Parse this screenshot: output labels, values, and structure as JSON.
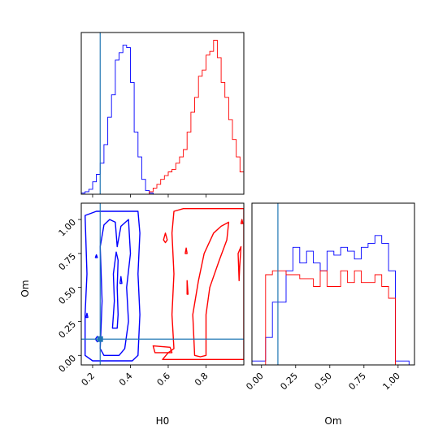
{
  "chart_data": {
    "type": "corner",
    "parameters": [
      "H0",
      "Om"
    ],
    "truth": {
      "H0": 0.24,
      "Om": 0.12
    },
    "colors": {
      "series_a": "#0000ff",
      "series_b": "#ff0000",
      "truth": "#1f77b4"
    },
    "axes": {
      "H0": {
        "label": "H0",
        "range": [
          0.14,
          1.0
        ],
        "ticks": [
          "0.2",
          "0.4",
          "0.6",
          "0.8"
        ],
        "tick_values": [
          0.2,
          0.4,
          0.6,
          0.8
        ]
      },
      "Om": {
        "label": "Om",
        "range": [
          -0.07,
          1.12
        ],
        "ticks": [
          "0.00",
          "0.25",
          "0.50",
          "0.75",
          "1.00"
        ],
        "tick_values": [
          0.0,
          0.25,
          0.5,
          0.75,
          1.0
        ]
      }
    },
    "hist_H0": {
      "bin_edges": [
        0.14,
        0.16,
        0.18,
        0.2,
        0.22,
        0.24,
        0.26,
        0.28,
        0.3,
        0.32,
        0.34,
        0.36,
        0.38,
        0.4,
        0.42,
        0.44,
        0.46,
        0.48,
        0.5,
        0.52,
        0.54,
        0.56,
        0.58,
        0.6,
        0.62,
        0.64,
        0.66,
        0.68,
        0.7,
        0.72,
        0.74,
        0.76,
        0.78,
        0.8,
        0.82,
        0.84,
        0.86,
        0.88,
        0.9,
        0.92,
        0.94,
        0.96,
        0.98,
        1.0
      ],
      "series_a": [
        1,
        2,
        4,
        10,
        16,
        25,
        40,
        62,
        80,
        108,
        114,
        120,
        118,
        90,
        50,
        30,
        12,
        3,
        1,
        0,
        0,
        0,
        0,
        0,
        0,
        0,
        0,
        0,
        0,
        0,
        0,
        0,
        0,
        0,
        0,
        0,
        0,
        0,
        0,
        0,
        0,
        0,
        0
      ],
      "series_b": [
        0,
        0,
        0,
        0,
        0,
        0,
        0,
        0,
        0,
        0,
        0,
        0,
        0,
        0,
        0,
        0,
        0,
        0,
        2,
        5,
        8,
        12,
        15,
        18,
        20,
        25,
        30,
        36,
        50,
        66,
        78,
        95,
        100,
        112,
        115,
        124,
        110,
        90,
        78,
        60,
        44,
        30,
        18
      ]
    },
    "hist_Om": {
      "bin_edges": [
        -0.07,
        -0.02,
        0.03,
        0.08,
        0.13,
        0.18,
        0.23,
        0.28,
        0.33,
        0.38,
        0.43,
        0.48,
        0.53,
        0.58,
        0.63,
        0.68,
        0.73,
        0.78,
        0.83,
        0.88,
        0.93,
        0.98,
        1.03,
        1.08,
        1.12
      ],
      "series_a": [
        5,
        5,
        35,
        80,
        80,
        120,
        150,
        130,
        145,
        130,
        120,
        145,
        140,
        150,
        145,
        135,
        150,
        155,
        165,
        155,
        120,
        5,
        5,
        0
      ],
      "series_b": [
        0,
        0,
        115,
        120,
        120,
        115,
        115,
        110,
        110,
        100,
        120,
        100,
        100,
        120,
        105,
        120,
        105,
        105,
        115,
        100,
        85,
        0,
        0,
        0
      ]
    },
    "contours_2d": {
      "series_a": [
        [
          [
            0.16,
            0.0
          ],
          [
            0.16,
            0.3
          ],
          [
            0.17,
            0.6
          ],
          [
            0.16,
            1.03
          ],
          [
            0.22,
            1.06
          ],
          [
            0.34,
            1.06
          ],
          [
            0.44,
            1.06
          ],
          [
            0.45,
            0.9
          ],
          [
            0.44,
            0.6
          ],
          [
            0.45,
            0.3
          ],
          [
            0.44,
            0.0
          ],
          [
            0.41,
            -0.04
          ],
          [
            0.3,
            -0.04
          ],
          [
            0.2,
            -0.04
          ],
          [
            0.16,
            0.0
          ]
        ],
        [
          [
            0.24,
            0.05
          ],
          [
            0.25,
            0.4
          ],
          [
            0.24,
            0.8
          ],
          [
            0.26,
            0.96
          ],
          [
            0.29,
            1.0
          ],
          [
            0.32,
            0.98
          ],
          [
            0.33,
            0.8
          ],
          [
            0.35,
            0.95
          ],
          [
            0.39,
            1.0
          ],
          [
            0.4,
            0.75
          ],
          [
            0.38,
            0.5
          ],
          [
            0.39,
            0.25
          ],
          [
            0.37,
            0.05
          ],
          [
            0.34,
            0.0
          ],
          [
            0.3,
            0.0
          ],
          [
            0.26,
            0.0
          ],
          [
            0.24,
            0.05
          ]
        ],
        [
          [
            0.305,
            0.2
          ],
          [
            0.315,
            0.4
          ],
          [
            0.31,
            0.6
          ],
          [
            0.325,
            0.76
          ],
          [
            0.335,
            0.7
          ],
          [
            0.33,
            0.5
          ],
          [
            0.335,
            0.3
          ],
          [
            0.33,
            0.2
          ],
          [
            0.305,
            0.2
          ]
        ],
        [
          [
            0.165,
            0.28
          ],
          [
            0.17,
            0.31
          ],
          [
            0.175,
            0.28
          ],
          [
            0.165,
            0.28
          ]
        ],
        [
          [
            0.215,
            0.12
          ],
          [
            0.225,
            0.14
          ],
          [
            0.235,
            0.12
          ],
          [
            0.225,
            0.1
          ],
          [
            0.215,
            0.12
          ]
        ],
        [
          [
            0.345,
            0.53
          ],
          [
            0.35,
            0.58
          ],
          [
            0.355,
            0.53
          ],
          [
            0.345,
            0.53
          ]
        ],
        [
          [
            0.215,
            0.72
          ],
          [
            0.22,
            0.74
          ],
          [
            0.225,
            0.72
          ],
          [
            0.215,
            0.72
          ]
        ]
      ],
      "series_b": [
        [
          [
            0.57,
            -0.03
          ],
          [
            0.9,
            -0.03
          ],
          [
            1.0,
            -0.03
          ],
          [
            1.0,
            1.08
          ],
          [
            0.82,
            1.08
          ],
          [
            0.68,
            1.08
          ],
          [
            0.63,
            1.06
          ],
          [
            0.62,
            0.9
          ],
          [
            0.63,
            0.6
          ],
          [
            0.62,
            0.3
          ],
          [
            0.63,
            0.05
          ],
          [
            0.6,
            0.02
          ],
          [
            0.57,
            -0.03
          ]
        ],
        [
          [
            0.53,
            0.02
          ],
          [
            0.52,
            0.07
          ],
          [
            0.61,
            0.06
          ],
          [
            0.62,
            0.02
          ],
          [
            0.53,
            0.02
          ]
        ],
        [
          [
            0.74,
            0.0
          ],
          [
            0.73,
            0.3
          ],
          [
            0.76,
            0.55
          ],
          [
            0.79,
            0.75
          ],
          [
            0.84,
            0.9
          ],
          [
            0.88,
            0.95
          ],
          [
            0.92,
            0.98
          ],
          [
            0.91,
            0.85
          ],
          [
            0.87,
            0.7
          ],
          [
            0.82,
            0.5
          ],
          [
            0.8,
            0.3
          ],
          [
            0.8,
            0.15
          ],
          [
            0.8,
            0.0
          ],
          [
            0.77,
            -0.01
          ],
          [
            0.74,
            0.0
          ]
        ],
        [
          [
            0.975,
            0.55
          ],
          [
            0.978,
            0.65
          ],
          [
            0.985,
            0.8
          ],
          [
            0.97,
            0.75
          ],
          [
            0.975,
            0.55
          ]
        ],
        [
          [
            0.985,
            0.97
          ],
          [
            0.99,
            1.0
          ],
          [
            0.995,
            0.97
          ],
          [
            0.985,
            0.97
          ]
        ],
        [
          [
            0.575,
            0.85
          ],
          [
            0.585,
            0.9
          ],
          [
            0.595,
            0.85
          ],
          [
            0.585,
            0.83
          ],
          [
            0.575,
            0.85
          ]
        ],
        [
          [
            0.69,
            0.75
          ],
          [
            0.695,
            0.79
          ],
          [
            0.7,
            0.75
          ],
          [
            0.69,
            0.75
          ]
        ],
        [
          [
            0.7,
            0.45
          ],
          [
            0.7,
            0.55
          ],
          [
            0.705,
            0.45
          ],
          [
            0.7,
            0.45
          ]
        ]
      ]
    }
  }
}
